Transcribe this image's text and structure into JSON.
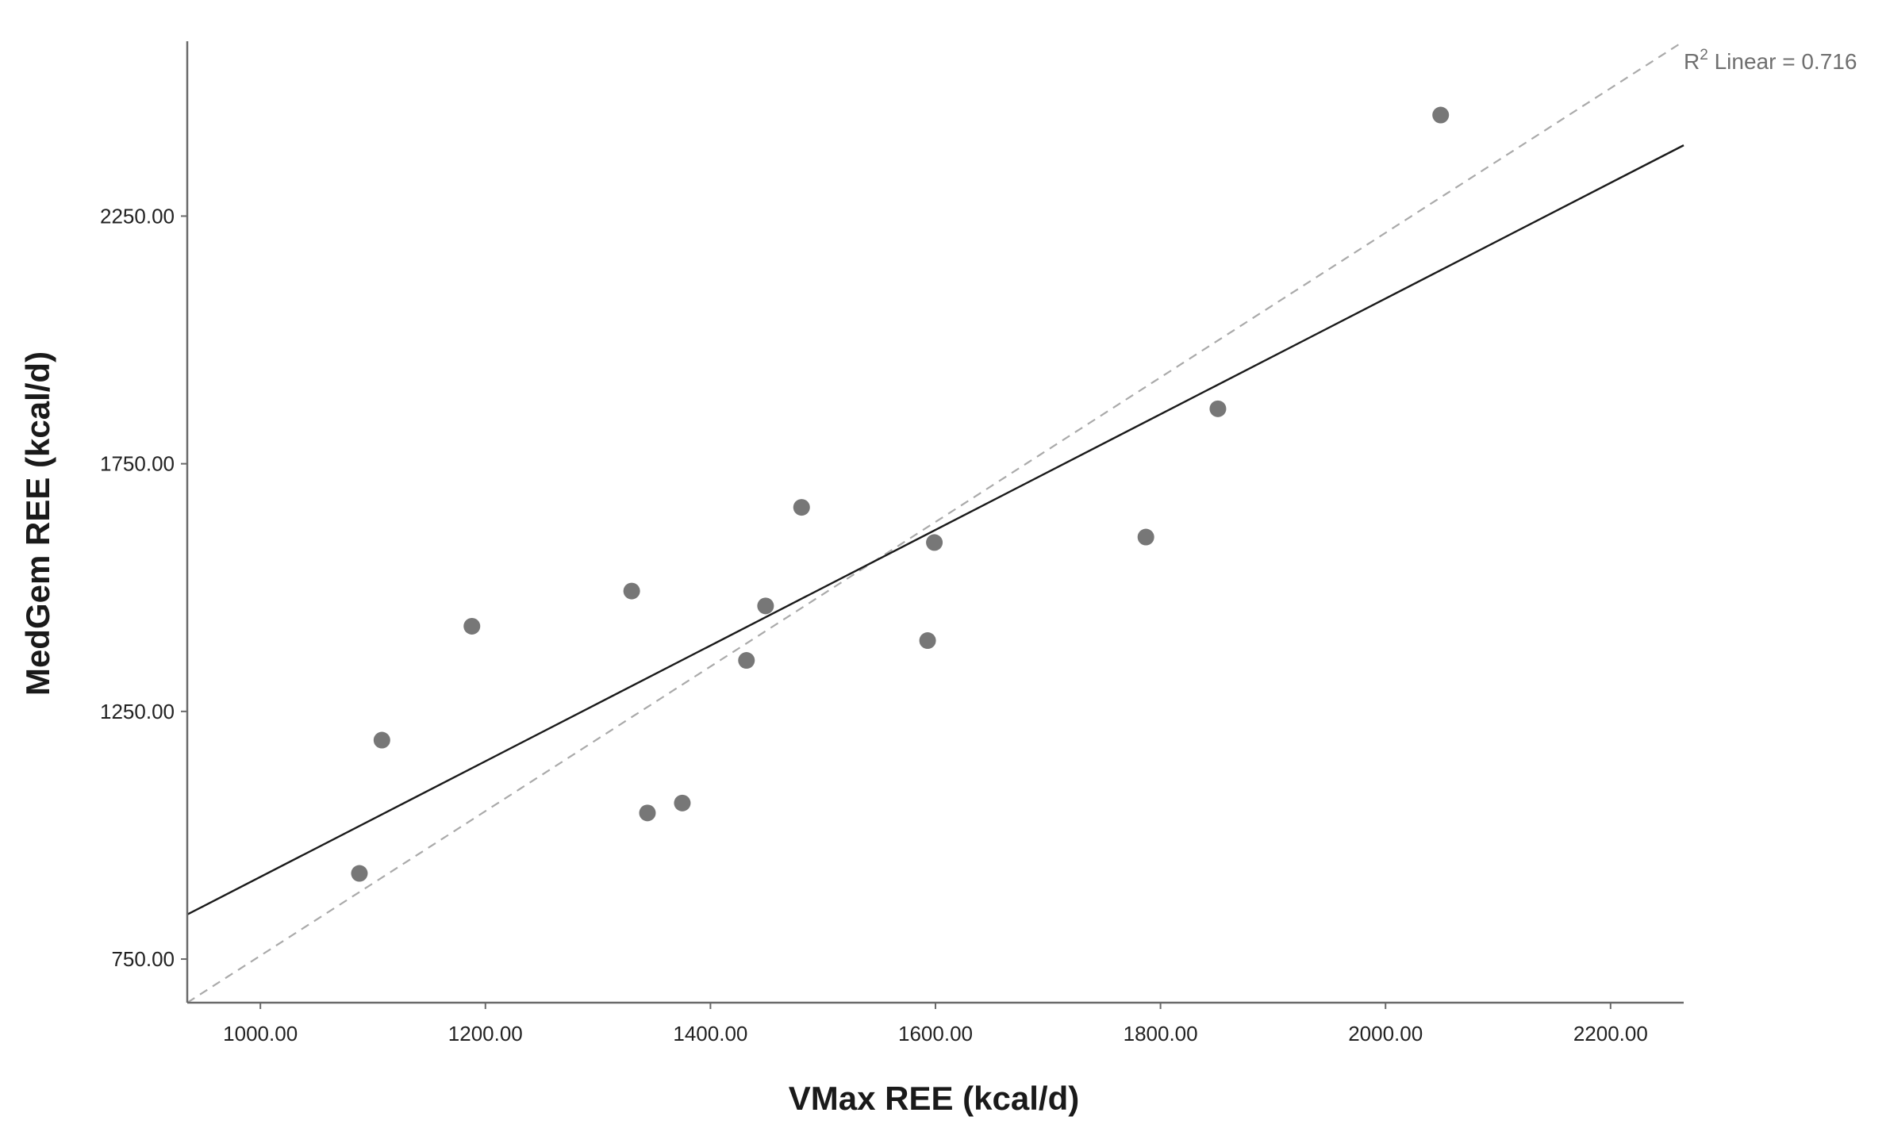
{
  "chart_data": {
    "type": "scatter",
    "title": "",
    "xlabel": "VMax REE (kcal/d)",
    "ylabel": "MedGem REE (kcal/d)",
    "xlim": [
      935,
      2265
    ],
    "ylim": [
      662,
      2603
    ],
    "x_ticks": [
      1000,
      1200,
      1400,
      1600,
      1800,
      2000,
      2200
    ],
    "x_tick_labels": [
      "1000.00",
      "1200.00",
      "1400.00",
      "1600.00",
      "1800.00",
      "2000.00",
      "2200.00"
    ],
    "y_ticks": [
      750,
      1250,
      1750,
      2250
    ],
    "y_tick_labels": [
      "750.00",
      "1250.00",
      "1750.00",
      "2250.00"
    ],
    "grid": false,
    "points": [
      {
        "x": 1088,
        "y": 923
      },
      {
        "x": 1108,
        "y": 1192
      },
      {
        "x": 1188,
        "y": 1422
      },
      {
        "x": 1330,
        "y": 1493
      },
      {
        "x": 1344,
        "y": 1045
      },
      {
        "x": 1375,
        "y": 1065
      },
      {
        "x": 1432,
        "y": 1353
      },
      {
        "x": 1449,
        "y": 1463
      },
      {
        "x": 1481,
        "y": 1662
      },
      {
        "x": 1593,
        "y": 1393
      },
      {
        "x": 1599,
        "y": 1591
      },
      {
        "x": 1787,
        "y": 1602
      },
      {
        "x": 1851,
        "y": 1861
      },
      {
        "x": 2049,
        "y": 2454
      }
    ],
    "fit_line": {
      "x": [
        935,
        2265
      ],
      "y": [
        840,
        2393
      ]
    },
    "reference_line": {
      "x": [
        935,
        2265
      ],
      "y": [
        662,
        2603
      ]
    },
    "r2_label": {
      "prefix": "R",
      "sup": "2",
      "text": " Linear = 0.716"
    },
    "colors": {
      "point": "#777777",
      "fit_line": "#1a1a1a",
      "reference_line": "#aaaaaa",
      "axis": "#6a6a6a"
    }
  }
}
